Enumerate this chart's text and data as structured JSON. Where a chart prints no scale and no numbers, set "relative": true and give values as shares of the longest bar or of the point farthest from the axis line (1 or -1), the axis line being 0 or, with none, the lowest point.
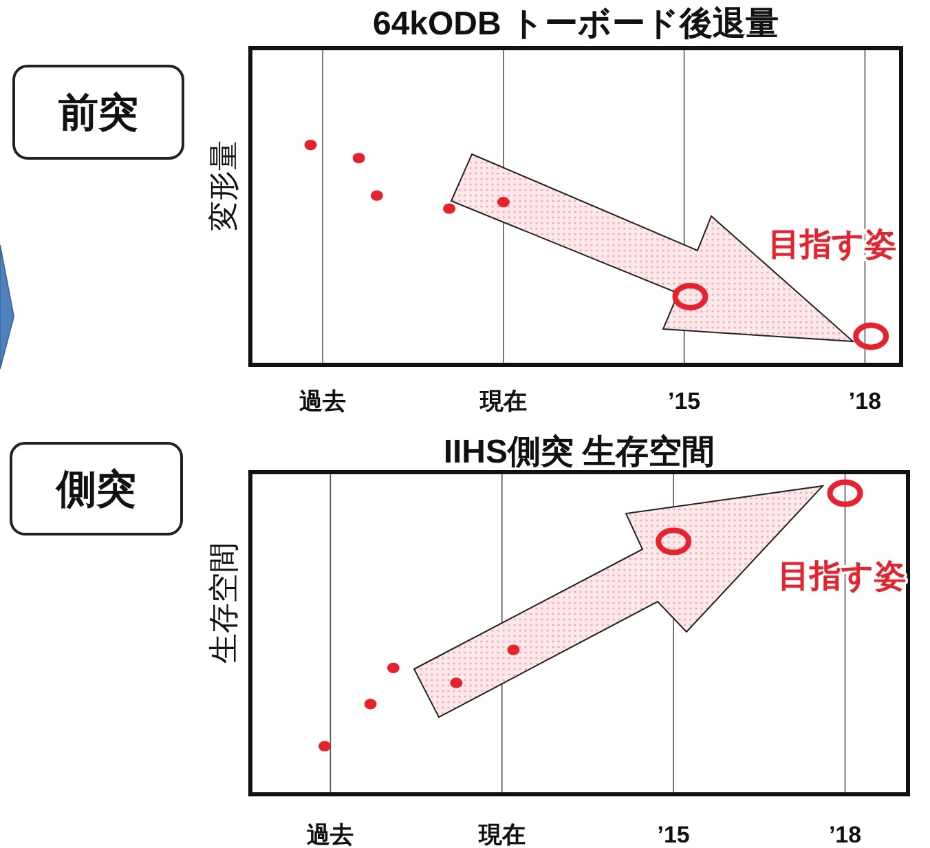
{
  "chart_data": [
    {
      "type": "scatter",
      "title": "64kODB トーボード後退量",
      "ylabel": "変形量",
      "relative": true,
      "grid": "x",
      "marker": "circle",
      "xlim": [
        2007.8,
        2018.6
      ],
      "xticks": [
        {
          "value": 2009,
          "label": "過去"
        },
        {
          "value": 2012,
          "label": "現在"
        },
        {
          "value": 2015,
          "label": "’15"
        },
        {
          "value": 2018,
          "label": "’18"
        }
      ],
      "series": [
        {
          "color": "#e8212a",
          "x": [
            2008.8,
            2009.6,
            2009.9,
            2011.1,
            2012
          ],
          "values": [
            1,
            0.94,
            0.77,
            0.71,
            0.74
          ]
        },
        {
          "color": "#e8212a",
          "x": [
            2015.1,
            2018.1
          ],
          "values": [
            0.31,
            0.13
          ]
        }
      ],
      "annotations": [
        "前突",
        "目指す姿"
      ]
    },
    {
      "type": "scatter",
      "title": "IIHS側突  生存空間",
      "ylabel": "生存空間",
      "relative": true,
      "grid": "x",
      "marker": "circle",
      "xlim": [
        2007.6,
        2019.1
      ],
      "xticks": [
        {
          "value": 2009,
          "label": "過去"
        },
        {
          "value": 2012,
          "label": "現在"
        },
        {
          "value": 2015,
          "label": "’15"
        },
        {
          "value": 2018,
          "label": "’18"
        }
      ],
      "series": [
        {
          "color": "#e8212a",
          "x": [
            2008.9,
            2009.7,
            2010.1,
            2011.2,
            2012.2
          ],
          "values": [
            0.16,
            0.3,
            0.42,
            0.37,
            0.48
          ]
        },
        {
          "color": "#e8212a",
          "x": [
            2015,
            2018
          ],
          "values": [
            0.84,
            1
          ]
        }
      ],
      "annotations": [
        "側突",
        "目指す姿"
      ]
    }
  ]
}
